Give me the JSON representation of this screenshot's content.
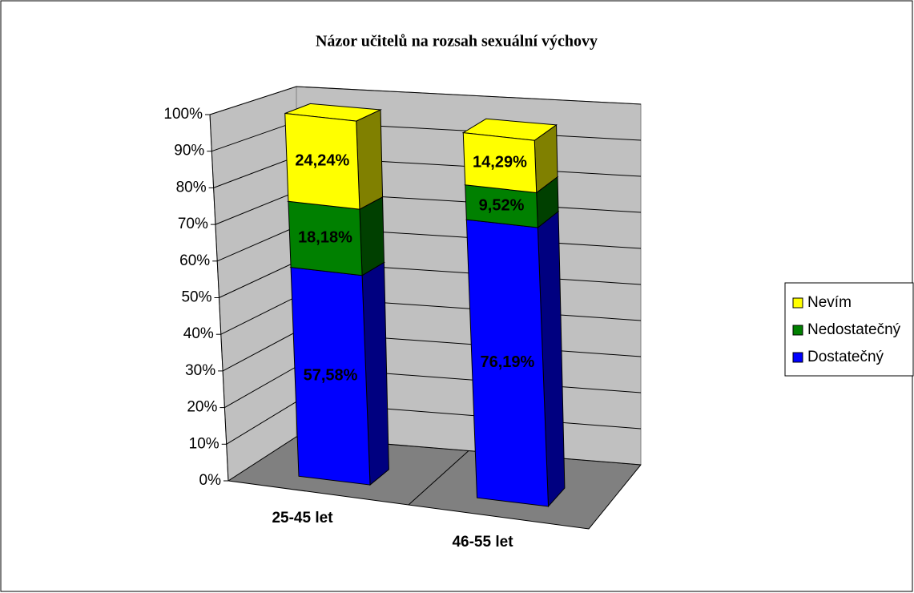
{
  "chart_data": {
    "type": "bar3d_stacked",
    "title": "Názor učitelů na rozsah sexuální výchovy",
    "categories": [
      "25-45 let",
      "46-55 let"
    ],
    "series": [
      {
        "name": "Dostatečný",
        "color": "#0000ff",
        "values": [
          57.58,
          76.19
        ],
        "value_labels": [
          "57,58%",
          "76,19%"
        ]
      },
      {
        "name": "Nedostatečný",
        "color": "#008000",
        "values": [
          18.18,
          9.52
        ],
        "value_labels": [
          "18,18%",
          "9,52%"
        ]
      },
      {
        "name": "Nevím",
        "color": "#ffff00",
        "values": [
          24.24,
          14.29
        ],
        "value_labels": [
          "24,24%",
          "14,29%"
        ]
      }
    ],
    "ylim": [
      0,
      100
    ],
    "yticks": [
      {
        "value": 0,
        "label": "0%"
      },
      {
        "value": 10,
        "label": "10%"
      },
      {
        "value": 20,
        "label": "20%"
      },
      {
        "value": 30,
        "label": "30%"
      },
      {
        "value": 40,
        "label": "40%"
      },
      {
        "value": 50,
        "label": "50%"
      },
      {
        "value": 60,
        "label": "60%"
      },
      {
        "value": 70,
        "label": "70%"
      },
      {
        "value": 80,
        "label": "80%"
      },
      {
        "value": 90,
        "label": "90%"
      },
      {
        "value": 100,
        "label": "100%"
      }
    ],
    "grid": true,
    "legend": "right"
  }
}
